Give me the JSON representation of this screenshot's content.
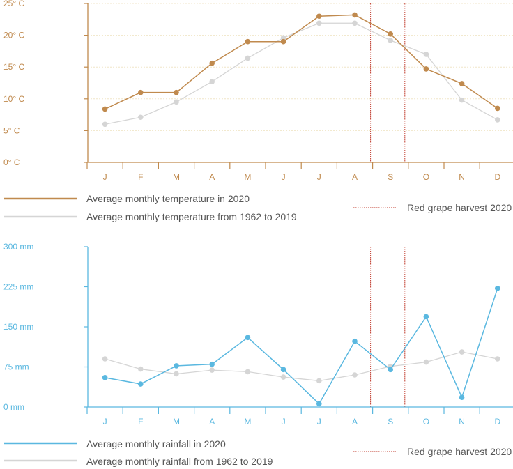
{
  "colors": {
    "temp_2020": "#c08a4e",
    "rain_2020": "#5ab8e0",
    "average": "#d5d5d5",
    "harvest": "#c0392b",
    "grid": "#f0e6c8"
  },
  "chart_data": [
    {
      "type": "line",
      "categories": [
        "J",
        "F",
        "M",
        "A",
        "M",
        "J",
        "J",
        "A",
        "S",
        "O",
        "N",
        "D"
      ],
      "ytick_labels": [
        "0° C",
        "5° C",
        "10° C",
        "15° C",
        "20° C",
        "25° C"
      ],
      "yticks": [
        0,
        5,
        10,
        15,
        20,
        25
      ],
      "ylim": [
        0,
        25
      ],
      "series": [
        {
          "name": "Average monthly temperature in 2020",
          "values": [
            8.4,
            11.0,
            11.0,
            15.6,
            19.0,
            19.0,
            23.0,
            23.2,
            20.2,
            14.7,
            12.4,
            8.5
          ]
        },
        {
          "name": "Average monthly temperature from 1962 to 2019",
          "values": [
            6.0,
            7.1,
            9.5,
            12.7,
            16.4,
            19.6,
            21.9,
            21.9,
            19.2,
            17.0,
            9.8,
            6.7
          ]
        }
      ],
      "annotation": {
        "label": "Red grape harvest 2020",
        "start_month": "S",
        "end_month": "S"
      },
      "grid": true
    },
    {
      "type": "line",
      "categories": [
        "J",
        "F",
        "M",
        "A",
        "M",
        "J",
        "J",
        "A",
        "S",
        "O",
        "N",
        "D"
      ],
      "ytick_labels": [
        "0 mm",
        "75 mm",
        "150 mm",
        "225 mm",
        "300 mm"
      ],
      "yticks": [
        0,
        75,
        150,
        225,
        300
      ],
      "ylim": [
        0,
        300
      ],
      "series": [
        {
          "name": "Average monthly rainfall in 2020",
          "values": [
            55,
            43,
            77,
            80,
            130,
            70,
            6,
            123,
            70,
            169,
            18,
            222
          ]
        },
        {
          "name": "Average monthly rainfall from 1962 to 2019",
          "values": [
            90,
            71,
            62,
            69,
            66,
            56,
            49,
            60,
            76,
            84,
            103,
            90
          ]
        }
      ],
      "annotation": {
        "label": "Red grape harvest 2020",
        "start_month": "S",
        "end_month": "S"
      },
      "grid": false
    }
  ]
}
